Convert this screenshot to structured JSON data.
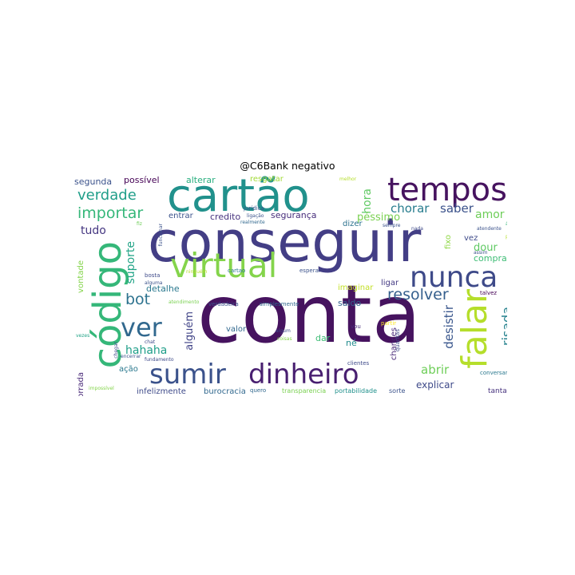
{
  "title": "@C6Bank negativo",
  "words": [
    {
      "text": "conta",
      "color": "#46135f"
    },
    {
      "text": "conseguir",
      "color": "#433e85"
    },
    {
      "text": "cartão",
      "color": "#21918c"
    },
    {
      "text": "código",
      "color": "#35b779"
    },
    {
      "text": "virtual",
      "color": "#84d44b"
    },
    {
      "text": "tempos",
      "color": "#46135f"
    },
    {
      "text": "nunca",
      "color": "#3e4a89"
    },
    {
      "text": "falar",
      "color": "#b5de2b"
    },
    {
      "text": "dinheiro",
      "color": "#481f70"
    },
    {
      "text": "sumir",
      "color": "#3b528b"
    },
    {
      "text": "ver",
      "color": "#31688e"
    },
    {
      "text": "verdade",
      "color": "#1f9e89"
    },
    {
      "text": "importar",
      "color": "#35b779"
    },
    {
      "text": "resolver",
      "color": "#355f8d"
    },
    {
      "text": "bot",
      "color": "#2c728e"
    },
    {
      "text": "hahaha",
      "color": "#1f9e89"
    },
    {
      "text": "chorar",
      "color": "#287d8e"
    },
    {
      "text": "saber",
      "color": "#3b528b"
    },
    {
      "text": "amor",
      "color": "#6ece58"
    },
    {
      "text": "abrir",
      "color": "#6ece58"
    },
    {
      "text": "explicar",
      "color": "#3e4a89"
    },
    {
      "text": "risada",
      "color": "#26828e"
    },
    {
      "text": "desistir",
      "color": "#39568c"
    },
    {
      "text": "hora",
      "color": "#5ec962"
    },
    {
      "text": "péssimo",
      "color": "#7ad151"
    },
    {
      "text": "dour",
      "color": "#5ec962"
    },
    {
      "text": "comprar",
      "color": "#3dbc74"
    },
    {
      "text": "tudo",
      "color": "#453781"
    },
    {
      "text": "suporte",
      "color": "#20a386"
    },
    {
      "text": "alguém",
      "color": "#414487"
    },
    {
      "text": "detalhe",
      "color": "#2a788e"
    },
    {
      "text": "ação",
      "color": "#2a788e"
    },
    {
      "text": "porrada",
      "color": "#482878"
    },
    {
      "text": "vontade",
      "color": "#84d44b"
    },
    {
      "text": "segunda",
      "color": "#3b528b"
    },
    {
      "text": "possível",
      "color": "#440154"
    },
    {
      "text": "alterar",
      "color": "#29af7f"
    },
    {
      "text": "resgatar",
      "color": "#a2da37"
    },
    {
      "text": "entrar",
      "color": "#3b528b"
    },
    {
      "text": "credito",
      "color": "#46327e"
    },
    {
      "text": "segurança",
      "color": "#472d7b"
    },
    {
      "text": "dizer",
      "color": "#2c728e"
    },
    {
      "text": "vez",
      "color": "#3e4a89"
    },
    {
      "text": "fixo",
      "color": "#8fd744"
    },
    {
      "text": "ligar",
      "color": "#443a83"
    },
    {
      "text": "saldo",
      "color": "#33638d"
    },
    {
      "text": "imaginar",
      "color": "#c2df23"
    },
    {
      "text": "né",
      "color": "#228c8d"
    },
    {
      "text": "dar",
      "color": "#3dbc74"
    },
    {
      "text": "valor",
      "color": "#31688e"
    },
    {
      "text": "chances",
      "color": "#482878"
    },
    {
      "text": "infelizmente",
      "color": "#3e4a89"
    },
    {
      "text": "burocracia",
      "color": "#31688e"
    },
    {
      "text": "tanta",
      "color": "#46327e"
    },
    {
      "text": "sorte",
      "color": "#3b528b"
    },
    {
      "text": "portabilidade",
      "color": "#21918c"
    },
    {
      "text": "transparencia",
      "color": "#7ad151"
    },
    {
      "text": "quero",
      "color": "#31688e"
    },
    {
      "text": "conversar",
      "color": "#2a788e"
    },
    {
      "text": "clientes",
      "color": "#3e4a89"
    },
    {
      "text": "quantas",
      "color": "#3e4a89"
    },
    {
      "text": "partir",
      "color": "#fde725"
    },
    {
      "text": "vou",
      "color": "#482878"
    },
    {
      "text": "talvez",
      "color": "#440154"
    },
    {
      "text": "simplesmente",
      "color": "#31688e"
    },
    {
      "text": "verdadeira",
      "color": "#3b528b"
    },
    {
      "text": "atendimento",
      "color": "#7ad151"
    },
    {
      "text": "esperar",
      "color": "#3b528b"
    },
    {
      "text": "cartao",
      "color": "#2a788e"
    },
    {
      "text": "ninguém",
      "color": "#b5de2b"
    },
    {
      "text": "bosta",
      "color": "#3e4a89"
    },
    {
      "text": "alguma",
      "color": "#3b528b"
    },
    {
      "text": "jurídica",
      "color": "#39568c"
    },
    {
      "text": "realmente",
      "color": "#31688e"
    },
    {
      "text": "ligação",
      "color": "#3b528b"
    },
    {
      "text": "sempre",
      "color": "#3b528b"
    },
    {
      "text": "nada",
      "color": "#3e4a89"
    },
    {
      "text": "atendente",
      "color": "#3b528b"
    },
    {
      "text": "área",
      "color": "#35b779"
    },
    {
      "text": "pessoa",
      "color": "#b5de2b"
    },
    {
      "text": "assim",
      "color": "#3b528b"
    },
    {
      "text": "melhor",
      "color": "#b5de2b"
    },
    {
      "text": "funcionar",
      "color": "#3b528b"
    },
    {
      "text": "fiz",
      "color": "#6ece58"
    },
    {
      "text": "chegar",
      "color": "#3e4a89"
    },
    {
      "text": "vezes",
      "color": "#20a386"
    },
    {
      "text": "chat",
      "color": "#3e4a89"
    },
    {
      "text": "fundamento",
      "color": "#3e4a89"
    },
    {
      "text": "encerrar",
      "color": "#3b528b"
    },
    {
      "text": "impossível",
      "color": "#84d44b"
    },
    {
      "text": "coisas",
      "color": "#84d44b"
    },
    {
      "text": "algum",
      "color": "#3e4a89"
    }
  ]
}
